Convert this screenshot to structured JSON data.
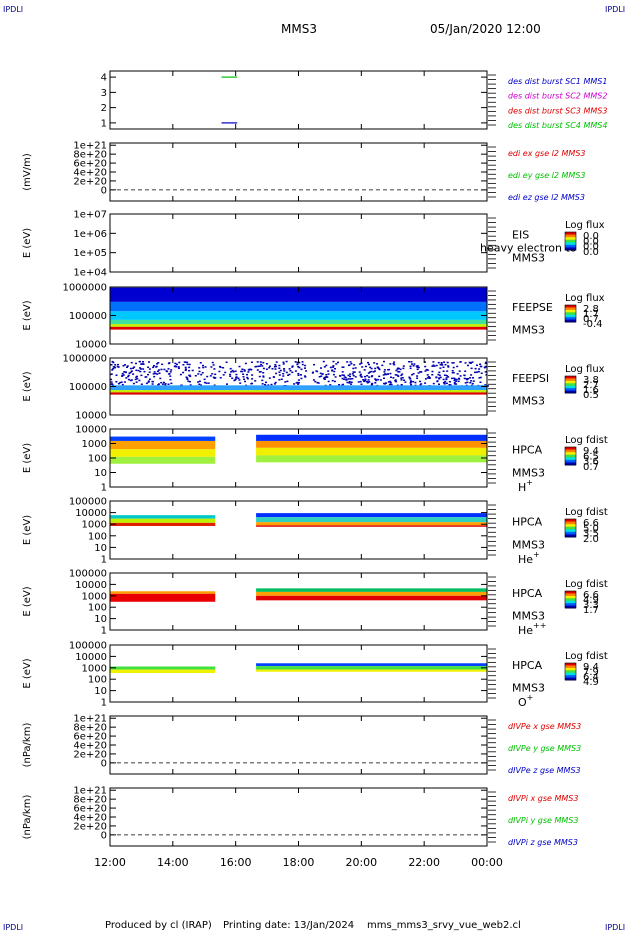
{
  "corner_tag": "IPDLI",
  "header": {
    "spacecraft": "MMS3",
    "datetime": "05/Jan/2020 12:00"
  },
  "footer": {
    "produced": "Produced by cl (IRAP)",
    "printing": "Printing date: 13/Jan/2024",
    "script": "mms_mms3_srvy_vue_web2.cl"
  },
  "colors": {
    "red": "#e00000",
    "green": "#00c000",
    "blue": "#0000c8",
    "magenta": "#d000d0",
    "dashed": "#000000"
  },
  "chart_data": {
    "type": "heatmap",
    "time_axis": {
      "range": [
        "12:00",
        "00:00"
      ],
      "ticks": [
        "12:00",
        "14:00",
        "16:00",
        "18:00",
        "20:00",
        "22:00",
        "00:00"
      ],
      "tick_hours": [
        0,
        2,
        4,
        6,
        8,
        10,
        12
      ]
    },
    "panels": [
      {
        "id": "dist",
        "type": "line",
        "ylabel": "",
        "yscale": "linear",
        "ylim": [
          0.6,
          4.4
        ],
        "ytick_values": [
          1,
          2,
          3,
          4
        ],
        "ytick_labels": [
          "1",
          "2",
          "3",
          "4"
        ],
        "segments": [
          {
            "y": 4,
            "t0": 3.55,
            "t1": 4.05,
            "color": "#00c000"
          },
          {
            "y": 1,
            "t0": 3.55,
            "t1": 4.05,
            "color": "#0000c8"
          }
        ],
        "labels": [
          {
            "text": "des dist burst SC1 MMS1",
            "color": "#0000c8"
          },
          {
            "text": "des dist burst SC2 MMS2",
            "color": "#d000d0"
          },
          {
            "text": "des dist burst SC3 MMS3",
            "color": "#e00000"
          },
          {
            "text": "des dist burst SC4 MMS4",
            "color": "#00c000"
          }
        ]
      },
      {
        "id": "edi",
        "type": "line",
        "ylabel": "(mV/m)",
        "yscale": "linear",
        "ylim": [
          -2.5e+20,
          1.05e+21
        ],
        "ytick_values": [
          0,
          2e+20,
          4e+20,
          6e+20,
          8e+20,
          1e+21
        ],
        "ytick_labels": [
          "0",
          "2e+20",
          "4e+20",
          "6e+20",
          "8e+20",
          "1e+21"
        ],
        "dashed_zero": true,
        "labels": [
          {
            "text": "edi ex gse l2 MMS3",
            "color": "#e00000"
          },
          {
            "text": "edi ey gse l2 MMS3",
            "color": "#00c000"
          },
          {
            "text": "edi ez gse l2 MMS3",
            "color": "#0000c8"
          }
        ]
      },
      {
        "id": "eis",
        "type": "heatmap",
        "ylabel": "E (eV)",
        "yscale": "log",
        "ylim": [
          10000.0,
          10000000.0
        ],
        "ytick_values": [
          10000.0,
          100000.0,
          1000000.0,
          10000000.0
        ],
        "ytick_labels": [
          "1e+04",
          "1e+05",
          "1e+06",
          "1e+07"
        ],
        "labels": [
          "EIS",
          "MMS3"
        ],
        "overlay_text": "heavy electron to",
        "cbar_title": "Log flux",
        "cbar_ticks": [
          "0.0",
          "0.0",
          "0.0",
          "0.0"
        ],
        "bands": []
      },
      {
        "id": "feepse",
        "type": "heatmap",
        "ylabel": "E (eV)",
        "yscale": "log",
        "ylim": [
          10000.0,
          1000000.0
        ],
        "ytick_values": [
          10000.0,
          100000.0,
          1000000.0
        ],
        "ytick_labels": [
          "10000",
          "100000",
          "1000000"
        ],
        "labels": [
          "FEEPSE",
          "MMS3"
        ],
        "cbar_title": "Log flux",
        "cbar_ticks": [
          "2.8",
          "1.7",
          "0.7",
          "-0.4"
        ],
        "bands": [
          {
            "t0": 0,
            "t1": 12,
            "e0": 950000.0,
            "e1": 300000.0,
            "color": "#0000d0"
          },
          {
            "t0": 0,
            "t1": 12,
            "e0": 300000.0,
            "e1": 140000.0,
            "color": "#0070ff"
          },
          {
            "t0": 0,
            "t1": 12,
            "e0": 140000.0,
            "e1": 70000.0,
            "color": "#00c8ff"
          },
          {
            "t0": 0,
            "t1": 12,
            "e0": 70000.0,
            "e1": 50000.0,
            "color": "#40e0a0"
          },
          {
            "t0": 0,
            "t1": 12,
            "e0": 50000.0,
            "e1": 40000.0,
            "color": "#c0f000"
          },
          {
            "t0": 0,
            "t1": 12,
            "e0": 40000.0,
            "e1": 32000.0,
            "color": "#e00000"
          }
        ]
      },
      {
        "id": "feepsi",
        "type": "heatmap",
        "ylabel": "E (eV)",
        "yscale": "log",
        "ylim": [
          10000.0,
          1000000.0
        ],
        "ytick_values": [
          10000.0,
          100000.0,
          1000000.0
        ],
        "ytick_labels": [
          "10000",
          "100000",
          "1000000"
        ],
        "labels": [
          "FEEPSI",
          "MMS3"
        ],
        "cbar_title": "Log flux",
        "cbar_ticks": [
          "3.8",
          "2.7",
          "1.6",
          "0.5"
        ],
        "bands": [
          {
            "t0": 0,
            "t1": 12,
            "e0": 800000.0,
            "e1": 110000.0,
            "color": "#0000b0",
            "speckle": true
          },
          {
            "t0": 0,
            "t1": 12,
            "e0": 110000.0,
            "e1": 75000.0,
            "color": "#30a0ff"
          },
          {
            "t0": 0,
            "t1": 12,
            "e0": 75000.0,
            "e1": 62000.0,
            "color": "#c0f000"
          },
          {
            "t0": 0,
            "t1": 12,
            "e0": 62000.0,
            "e1": 52000.0,
            "color": "#e00000"
          }
        ]
      },
      {
        "id": "hpca_h",
        "type": "heatmap",
        "ylabel": "E (eV)",
        "yscale": "log",
        "ylim": [
          1,
          10000.0
        ],
        "ytick_values": [
          1,
          10,
          100,
          1000,
          10000
        ],
        "ytick_labels": [
          "1",
          "10",
          "100",
          "1000",
          "10000"
        ],
        "labels": [
          "HPCA",
          "MMS3"
        ],
        "species_base": "H",
        "species_sup": "+",
        "cbar_title": "Log fdist",
        "cbar_ticks": [
          "9.4",
          "6.5",
          "3.6",
          "0.7"
        ],
        "bands": [
          {
            "t0": 0,
            "t1": 3.35,
            "e0": 3000,
            "e1": 1500,
            "color": "#0040ff"
          },
          {
            "t0": 0,
            "t1": 3.35,
            "e0": 1500,
            "e1": 400,
            "color": "#ffa000"
          },
          {
            "t0": 0,
            "t1": 3.35,
            "e0": 400,
            "e1": 120,
            "color": "#f0f000"
          },
          {
            "t0": 0,
            "t1": 3.35,
            "e0": 120,
            "e1": 40,
            "color": "#a0f040"
          },
          {
            "t0": 4.65,
            "t1": 12,
            "e0": 4000,
            "e1": 1500,
            "color": "#0030ff"
          },
          {
            "t0": 4.65,
            "t1": 12,
            "e0": 1500,
            "e1": 500,
            "color": "#ff9000"
          },
          {
            "t0": 4.65,
            "t1": 12,
            "e0": 500,
            "e1": 150,
            "color": "#f0f000"
          },
          {
            "t0": 4.65,
            "t1": 12,
            "e0": 150,
            "e1": 50,
            "color": "#a0f040"
          }
        ]
      },
      {
        "id": "hpca_he",
        "type": "heatmap",
        "ylabel": "E (eV)",
        "yscale": "log",
        "ylim": [
          1,
          100000.0
        ],
        "ytick_values": [
          1,
          10,
          100,
          1000,
          10000,
          100000
        ],
        "ytick_labels": [
          "1",
          "10",
          "100",
          "1000",
          "10000",
          "100000"
        ],
        "labels": [
          "HPCA",
          "MMS3"
        ],
        "species_base": "He",
        "species_sup": "+",
        "cbar_title": "Log fdist",
        "cbar_ticks": [
          "6.6",
          "5.0",
          "3.5",
          "2.0"
        ],
        "bands": [
          {
            "t0": 0,
            "t1": 3.35,
            "e0": 6000,
            "e1": 3000,
            "color": "#00c8c8"
          },
          {
            "t0": 0,
            "t1": 3.35,
            "e0": 3000,
            "e1": 1300,
            "color": "#c0f000"
          },
          {
            "t0": 0,
            "t1": 3.35,
            "e0": 1300,
            "e1": 700,
            "color": "#e02000"
          },
          {
            "t0": 4.65,
            "t1": 12,
            "e0": 9000,
            "e1": 4000,
            "color": "#0030ff"
          },
          {
            "t0": 4.65,
            "t1": 12,
            "e0": 4000,
            "e1": 1500,
            "color": "#30d0c0"
          },
          {
            "t0": 4.65,
            "t1": 12,
            "e0": 1500,
            "e1": 800,
            "color": "#ffa000"
          },
          {
            "t0": 4.65,
            "t1": 12,
            "e0": 800,
            "e1": 600,
            "color": "#e00000"
          }
        ]
      },
      {
        "id": "hpca_he2",
        "type": "heatmap",
        "ylabel": "E (eV)",
        "yscale": "log",
        "ylim": [
          1,
          100000.0
        ],
        "ytick_values": [
          1,
          10,
          100,
          1000,
          10000,
          100000
        ],
        "ytick_labels": [
          "1",
          "10",
          "100",
          "1000",
          "10000",
          "100000"
        ],
        "labels": [
          "HPCA",
          "MMS3"
        ],
        "species_base": "He",
        "species_sup": "++",
        "cbar_title": "Log fdist",
        "cbar_ticks": [
          "6.6",
          "4.9",
          "3.3",
          "1.7"
        ],
        "bands": [
          {
            "t0": 0,
            "t1": 3.35,
            "e0": 2500,
            "e1": 1500,
            "color": "#ffa000"
          },
          {
            "t0": 0,
            "t1": 3.35,
            "e0": 1500,
            "e1": 300,
            "color": "#e80000"
          },
          {
            "t0": 4.65,
            "t1": 12,
            "e0": 4500,
            "e1": 2200,
            "color": "#00c060"
          },
          {
            "t0": 4.65,
            "t1": 12,
            "e0": 2200,
            "e1": 1000,
            "color": "#ffa000"
          },
          {
            "t0": 4.65,
            "t1": 12,
            "e0": 1000,
            "e1": 400,
            "color": "#e00000"
          }
        ]
      },
      {
        "id": "hpca_o",
        "type": "heatmap",
        "ylabel": "E (eV)",
        "yscale": "log",
        "ylim": [
          1,
          100000.0
        ],
        "ytick_values": [
          1,
          10,
          100,
          1000,
          10000,
          100000
        ],
        "ytick_labels": [
          "1",
          "10",
          "100",
          "1000",
          "10000",
          "100000"
        ],
        "labels": [
          "HPCA",
          "MMS3"
        ],
        "species_base": "O",
        "species_sup": "+",
        "cbar_title": "Log fdist",
        "cbar_ticks": [
          "9.4",
          "7.9",
          "6.4",
          "4.9"
        ],
        "bands": [
          {
            "t0": 0,
            "t1": 3.35,
            "e0": 1300,
            "e1": 700,
            "color": "#40e040"
          },
          {
            "t0": 0,
            "t1": 3.35,
            "e0": 700,
            "e1": 350,
            "color": "#f0f000"
          },
          {
            "t0": 4.65,
            "t1": 12,
            "e0": 2500,
            "e1": 1400,
            "color": "#0040ff"
          },
          {
            "t0": 4.65,
            "t1": 12,
            "e0": 1400,
            "e1": 700,
            "color": "#40e040"
          },
          {
            "t0": 4.65,
            "t1": 12,
            "e0": 700,
            "e1": 450,
            "color": "#f0f000"
          }
        ]
      },
      {
        "id": "dvpe",
        "type": "line",
        "ylabel": "(nPa/km)",
        "yscale": "linear",
        "ylim": [
          -2.5e+20,
          1.05e+21
        ],
        "ytick_values": [
          0,
          2e+20,
          4e+20,
          6e+20,
          8e+20,
          1e+21
        ],
        "ytick_labels": [
          "0",
          "2e+20",
          "4e+20",
          "6e+20",
          "8e+20",
          "1e+21"
        ],
        "dashed_zero": true,
        "labels": [
          {
            "text": "dIVPe x gse MMS3",
            "color": "#e00000"
          },
          {
            "text": "dIVPe y gse MMS3",
            "color": "#00c000"
          },
          {
            "text": "dIVPe z gse MMS3",
            "color": "#0000c8"
          }
        ]
      },
      {
        "id": "dvpi",
        "type": "line",
        "ylabel": "(nPa/km)",
        "yscale": "linear",
        "ylim": [
          -2.5e+20,
          1.05e+21
        ],
        "ytick_values": [
          0,
          2e+20,
          4e+20,
          6e+20,
          8e+20,
          1e+21
        ],
        "ytick_labels": [
          "0",
          "2e+20",
          "4e+20",
          "6e+20",
          "8e+20",
          "1e+21"
        ],
        "dashed_zero": true,
        "labels": [
          {
            "text": "dIVPi x gse MMS3",
            "color": "#e00000"
          },
          {
            "text": "dIVPi y gse MMS3",
            "color": "#00c000"
          },
          {
            "text": "dIVPi z gse MMS3",
            "color": "#0000c8"
          }
        ]
      }
    ]
  }
}
